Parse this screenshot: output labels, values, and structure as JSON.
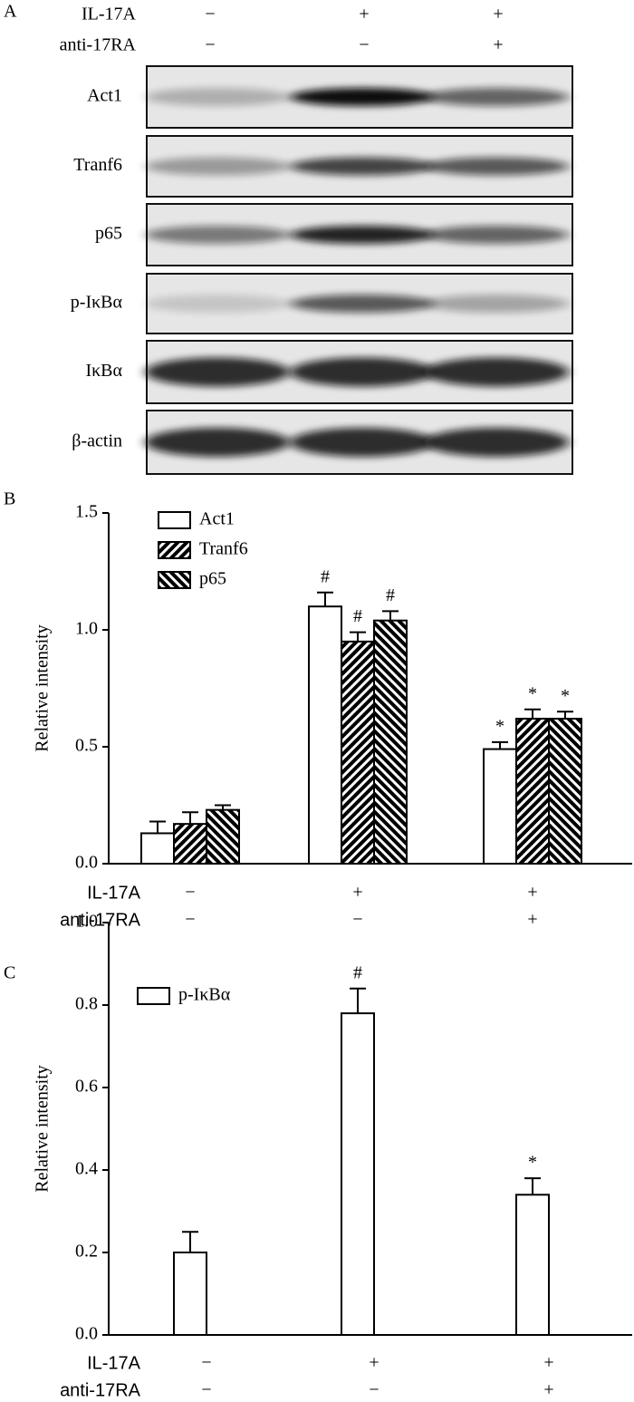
{
  "blot": {
    "panel_label": "A",
    "treatments": [
      {
        "name": "IL-17A",
        "signs": [
          "−",
          "+",
          "+"
        ]
      },
      {
        "name": "anti-17RA",
        "signs": [
          "−",
          "−",
          "+"
        ]
      }
    ],
    "bands": [
      "Act1",
      "Tranf6",
      "p65",
      "p-IκBα",
      "IκBα",
      "β-actin"
    ]
  },
  "chart_data": [
    {
      "type": "bar",
      "panel_label": "B",
      "ylabel": "Relative intensity",
      "ylim": [
        0,
        1.5
      ],
      "yticks": [
        {
          "value": 0,
          "label": "0.0"
        },
        0.5,
        {
          "value": 1,
          "label": "1.0"
        },
        1.5
      ],
      "treatments": [
        {
          "name": "IL-17A",
          "signs": [
            "−",
            "+",
            "+"
          ]
        },
        {
          "name": "anti-17RA",
          "signs": [
            "−",
            "−",
            "+"
          ]
        }
      ],
      "series": [
        {
          "name": "Act1",
          "pattern": "white",
          "values": [
            0.13,
            1.1,
            0.49
          ],
          "errors": [
            0.05,
            0.06,
            0.03
          ],
          "annotations": [
            null,
            "#",
            "*"
          ]
        },
        {
          "name": "Tranf6",
          "pattern": "forward-hatch",
          "values": [
            0.17,
            0.95,
            0.62
          ],
          "errors": [
            0.05,
            0.04,
            0.04
          ],
          "annotations": [
            null,
            "#",
            "*"
          ]
        },
        {
          "name": "p65",
          "pattern": "back-hatch",
          "values": [
            0.23,
            1.04,
            0.62
          ],
          "errors": [
            0.02,
            0.04,
            0.03
          ],
          "annotations": [
            null,
            "#",
            "*"
          ]
        }
      ]
    },
    {
      "type": "bar",
      "panel_label": "C",
      "ylabel": "Relative intensity",
      "ylim": [
        0,
        1
      ],
      "yticks": [
        {
          "value": 0,
          "label": "0.0"
        },
        0.2,
        0.4,
        0.6,
        0.8,
        {
          "value": 1,
          "label": "1.0"
        }
      ],
      "treatments": [
        {
          "name": "IL-17A",
          "signs": [
            "−",
            "+",
            "+"
          ]
        },
        {
          "name": "anti-17RA",
          "signs": [
            "−",
            "−",
            "+"
          ]
        }
      ],
      "series": [
        {
          "name": "p-IκBα",
          "pattern": "white",
          "values": [
            0.2,
            0.78,
            0.34
          ],
          "errors": [
            0.05,
            0.06,
            0.04
          ],
          "annotations": [
            null,
            "#",
            "*"
          ]
        }
      ]
    }
  ]
}
